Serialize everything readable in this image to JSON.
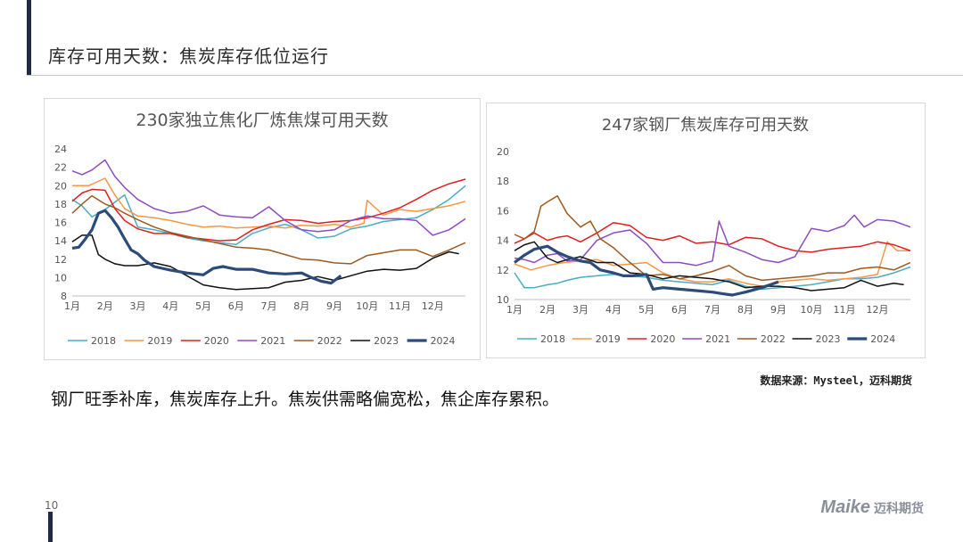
{
  "slide": {
    "title": "库存可用天数：焦炭库存低位运行",
    "summary": "钢厂旺季补库，焦炭库存上升。焦炭供需略偏宽松，焦企库存累积。",
    "source": "数据来源：Mysteel，迈科期货",
    "page_number": "10",
    "logo_mark": "Maike",
    "logo_text": "迈科期货"
  },
  "colors": {
    "2018": "#4bacc6",
    "2019": "#f79646",
    "2020": "#e02020",
    "2021": "#8e4bc2",
    "2022": "#9c5a22",
    "2023": "#111111",
    "2024": "#2c4a7a"
  },
  "chart_data": [
    {
      "type": "line",
      "title": "230家独立焦化厂炼焦煤可用天数",
      "xlabel": "",
      "ylabel": "",
      "ylim": [
        8,
        24
      ],
      "yticks": [
        8,
        10,
        12,
        14,
        16,
        18,
        20,
        22,
        24
      ],
      "categories": [
        "1月",
        "2月",
        "3月",
        "4月",
        "5月",
        "6月",
        "7月",
        "8月",
        "9月",
        "10月",
        "11月",
        "12月"
      ],
      "x_range": [
        1,
        13
      ],
      "series": [
        {
          "name": "2018",
          "x": [
            1,
            1.3,
            1.6,
            2,
            2.6,
            3,
            3.5,
            4,
            4.5,
            5,
            5.5,
            6,
            6.5,
            7,
            7.5,
            8,
            8.5,
            9,
            9.5,
            10,
            10.5,
            11,
            11.5,
            12,
            12.5,
            13
          ],
          "values": [
            18.5,
            17.8,
            16.6,
            17.4,
            19,
            15.5,
            15.2,
            14.8,
            14.3,
            14,
            13.8,
            13.6,
            14.8,
            15.4,
            15.8,
            15.2,
            14.3,
            14.5,
            15.3,
            15.6,
            16.1,
            16.3,
            16.5,
            17.4,
            18.5,
            20
          ]
        },
        {
          "name": "2019",
          "x": [
            1,
            1.5,
            2,
            2.3,
            2.6,
            3,
            3.5,
            4,
            4.5,
            5,
            5.5,
            6,
            6.5,
            7,
            7.5,
            8,
            8.5,
            9,
            9.5,
            9.9,
            10,
            10.5,
            11,
            11.5,
            12,
            12.5,
            13
          ],
          "values": [
            20,
            20,
            20.8,
            19,
            17.5,
            16.7,
            16.5,
            16.2,
            15.8,
            15.5,
            15.6,
            15.4,
            15.5,
            15.6,
            15.4,
            15.7,
            15.6,
            15.8,
            15.5,
            15.9,
            18.4,
            16.8,
            17.4,
            17.2,
            17.5,
            17.8,
            18.3
          ]
        },
        {
          "name": "2020",
          "x": [
            1,
            1.3,
            1.6,
            2,
            2.3,
            2.6,
            3,
            3.5,
            4,
            4.5,
            5,
            5.5,
            6,
            6.5,
            7,
            7.5,
            8,
            8.5,
            9,
            9.5,
            10,
            10.5,
            11,
            11.5,
            12,
            12.5,
            13
          ],
          "values": [
            18.3,
            19.2,
            19.6,
            19.5,
            17.5,
            16.2,
            15.3,
            14.8,
            14.8,
            14.4,
            14.2,
            14,
            14.1,
            15.2,
            15.8,
            16.3,
            16.2,
            15.9,
            16.1,
            16.2,
            16.5,
            17,
            17.6,
            18.5,
            19.5,
            20.2,
            20.7
          ]
        },
        {
          "name": "2021",
          "x": [
            1,
            1.3,
            1.6,
            2,
            2.3,
            2.6,
            3,
            3.5,
            4,
            4.5,
            5,
            5.5,
            6,
            6.5,
            7,
            7.5,
            8,
            8.5,
            9,
            9.5,
            10,
            10.5,
            11,
            11.5,
            12,
            12.5,
            13
          ],
          "values": [
            21.6,
            21.2,
            21.7,
            22.8,
            21,
            19.8,
            18.5,
            17.5,
            17,
            17.2,
            17.8,
            16.8,
            16.6,
            16.5,
            17.7,
            16.2,
            15.2,
            15,
            15.2,
            16.2,
            16.7,
            16.4,
            16.4,
            16.2,
            14.6,
            15.2,
            16.4
          ]
        },
        {
          "name": "2022",
          "x": [
            1,
            1.3,
            1.6,
            2,
            2.3,
            2.6,
            3,
            3.5,
            4,
            4.5,
            5,
            5.5,
            6,
            6.5,
            7,
            7.5,
            8,
            8.5,
            9,
            9.5,
            10,
            10.5,
            11,
            11.5,
            12,
            12.5,
            13
          ],
          "values": [
            17,
            18,
            18.9,
            18,
            17.6,
            17,
            16.3,
            15.5,
            14.9,
            14.5,
            14.1,
            13.7,
            13.3,
            13.2,
            13,
            12.5,
            12,
            11.9,
            11.6,
            11.5,
            12.4,
            12.7,
            13,
            13,
            12.3,
            13,
            13.8
          ]
        },
        {
          "name": "2023",
          "x": [
            1,
            1.3,
            1.6,
            1.8,
            2,
            2.3,
            2.6,
            3,
            3.5,
            4,
            4.5,
            5,
            5.5,
            6,
            6.5,
            7,
            7.5,
            8,
            8.5,
            9,
            9.5,
            10,
            10.5,
            11,
            11.5,
            12,
            12.5,
            12.8
          ],
          "values": [
            13.9,
            14.6,
            14.6,
            12.5,
            12,
            11.5,
            11.3,
            11.3,
            11.6,
            11.2,
            10.2,
            9.2,
            8.9,
            8.7,
            8.8,
            8.9,
            9.5,
            9.7,
            10.1,
            9.7,
            10.2,
            10.7,
            10.9,
            10.8,
            11,
            12.1,
            12.8,
            12.6
          ]
        },
        {
          "name": "2024",
          "x": [
            1,
            1.2,
            1.4,
            1.6,
            1.8,
            2,
            2.2,
            2.4,
            2.6,
            2.8,
            3,
            3.2,
            3.5,
            4,
            4.5,
            5,
            5.3,
            5.6,
            6,
            6.5,
            7,
            7.5,
            8,
            8.3,
            8.6,
            8.9,
            9.2
          ],
          "values": [
            13.2,
            13.3,
            14.2,
            15.2,
            17,
            17.3,
            16.5,
            15.5,
            14.2,
            13,
            12.6,
            11.9,
            11.2,
            10.8,
            10.5,
            10.3,
            11,
            11.2,
            10.9,
            10.9,
            10.5,
            10.4,
            10.5,
            10,
            9.6,
            9.4,
            10.2
          ]
        }
      ]
    },
    {
      "type": "line",
      "title": "247家钢厂焦炭库存可用天数",
      "xlabel": "",
      "ylabel": "",
      "ylim": [
        10,
        20
      ],
      "yticks": [
        10,
        12,
        14,
        16,
        18,
        20
      ],
      "categories": [
        "1月",
        "2月",
        "3月",
        "4月",
        "5月",
        "6月",
        "7月",
        "8月",
        "9月",
        "10月",
        "11月",
        "12月"
      ],
      "x_range": [
        1,
        13
      ],
      "series": [
        {
          "name": "2018",
          "x": [
            1,
            1.3,
            1.6,
            2,
            2.3,
            2.6,
            3,
            3.5,
            4,
            4.5,
            5,
            5.5,
            6,
            6.5,
            7,
            7.5,
            8,
            8.5,
            9,
            9.5,
            10,
            10.5,
            11,
            11.5,
            12,
            12.5,
            13
          ],
          "values": [
            11.8,
            10.8,
            10.8,
            11,
            11.1,
            11.3,
            11.5,
            11.6,
            11.7,
            11.6,
            11.5,
            11.3,
            11.2,
            11.1,
            11,
            11.3,
            10.9,
            10.7,
            10.8,
            10.9,
            11,
            11.2,
            11.4,
            11.4,
            11.5,
            11.8,
            12.2
          ]
        },
        {
          "name": "2019",
          "x": [
            1,
            1.5,
            2,
            2.5,
            3,
            3.5,
            4,
            4.5,
            5,
            5.5,
            6,
            6.5,
            7,
            7.5,
            8,
            8.5,
            9,
            9.5,
            10,
            10.5,
            11,
            11.5,
            12,
            12.3,
            12.6,
            13
          ],
          "values": [
            12.4,
            12,
            12.3,
            12.5,
            12.6,
            12.7,
            12.3,
            12.4,
            12.5,
            11.8,
            11.4,
            11.2,
            11.2,
            11.4,
            11.1,
            10.9,
            11.2,
            11.3,
            11.4,
            11.3,
            11.4,
            11.5,
            11.7,
            13.9,
            13.3,
            13.3
          ]
        },
        {
          "name": "2020",
          "x": [
            1,
            1.3,
            1.6,
            2,
            2.3,
            2.6,
            3,
            3.5,
            4,
            4.5,
            5,
            5.5,
            6,
            6.5,
            7,
            7.5,
            8,
            8.5,
            9,
            9.5,
            10,
            10.5,
            11,
            11.5,
            12,
            12.5,
            13
          ],
          "values": [
            13.8,
            14.1,
            14.5,
            14,
            14.2,
            14.3,
            13.9,
            14.5,
            15.2,
            15,
            14.2,
            14,
            14.3,
            13.8,
            13.9,
            13.7,
            14.2,
            14.1,
            13.6,
            13.3,
            13.2,
            13.4,
            13.5,
            13.6,
            13.9,
            13.7,
            13.3
          ]
        },
        {
          "name": "2021",
          "x": [
            1,
            1.3,
            1.6,
            2,
            2.3,
            2.6,
            3,
            3.5,
            4,
            4.5,
            5,
            5.5,
            6,
            6.5,
            7,
            7.2,
            7.5,
            8,
            8.5,
            9,
            9.5,
            10,
            10.5,
            11,
            11.3,
            11.6,
            12,
            12.5,
            13
          ],
          "values": [
            12.8,
            12.7,
            12.5,
            13,
            13.1,
            12.6,
            12.7,
            14,
            14.5,
            14.7,
            13.8,
            12.5,
            12.5,
            12.3,
            12.6,
            15.3,
            13.6,
            13.2,
            12.7,
            12.5,
            12.9,
            14.8,
            14.6,
            15,
            15.7,
            14.9,
            15.4,
            15.3,
            14.9
          ]
        },
        {
          "name": "2022",
          "x": [
            1,
            1.3,
            1.6,
            1.8,
            2,
            2.3,
            2.6,
            3,
            3.3,
            3.6,
            4,
            4.5,
            5,
            5.5,
            6,
            6.5,
            7,
            7.5,
            8,
            8.5,
            9,
            9.5,
            10,
            10.5,
            11,
            11.5,
            12,
            12.5,
            13
          ],
          "values": [
            14.4,
            14.1,
            14.6,
            16.3,
            16.6,
            17,
            15.8,
            14.9,
            15.3,
            14.1,
            13.5,
            12.5,
            11.6,
            11.7,
            11.4,
            11.6,
            11.9,
            12.3,
            11.6,
            11.3,
            11.4,
            11.5,
            11.6,
            11.8,
            11.8,
            12.1,
            12.2,
            12,
            12.5
          ]
        },
        {
          "name": "2023",
          "x": [
            1,
            1.3,
            1.6,
            2,
            2.3,
            2.6,
            3,
            3.5,
            4,
            4.5,
            5,
            5.5,
            6,
            6.5,
            7,
            7.5,
            8,
            8.5,
            9,
            9.5,
            10,
            10.5,
            11,
            11.5,
            12,
            12.5,
            12.8
          ],
          "values": [
            13.3,
            13.7,
            13.9,
            12.8,
            12.5,
            12.7,
            12.9,
            12.5,
            12.5,
            11.8,
            11.7,
            11.4,
            11.6,
            11.5,
            11.4,
            11.2,
            10.8,
            10.9,
            10.9,
            10.8,
            10.6,
            10.7,
            10.8,
            11.3,
            10.9,
            11.1,
            11
          ]
        },
        {
          "name": "2024",
          "x": [
            1,
            1.3,
            1.6,
            2,
            2.3,
            2.6,
            3,
            3.3,
            3.6,
            4,
            4.3,
            4.6,
            5,
            5.2,
            5.5,
            6,
            6.5,
            7,
            7.3,
            7.6,
            8,
            8.5,
            9
          ],
          "values": [
            12.5,
            13,
            13.4,
            13.6,
            13.2,
            12.9,
            12.6,
            12.5,
            12,
            11.8,
            11.6,
            11.6,
            11.7,
            10.7,
            10.8,
            10.7,
            10.6,
            10.5,
            10.4,
            10.3,
            10.5,
            10.8,
            11.2
          ]
        }
      ]
    }
  ]
}
